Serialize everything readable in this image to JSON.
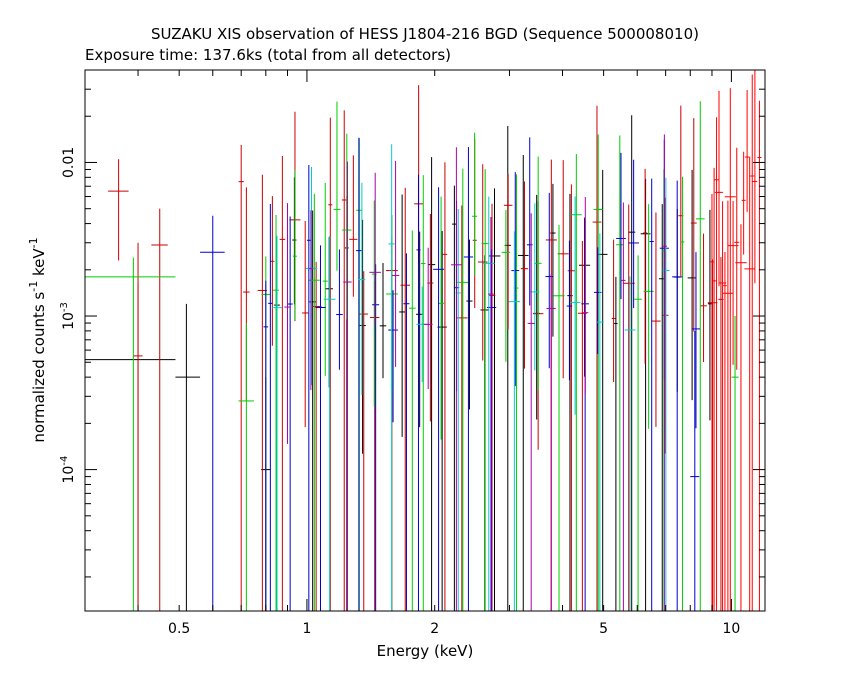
{
  "chart_data": {
    "type": "scatter",
    "title": "SUZAKU XIS observation of HESS J1804-216 BGD (Sequence 500008010)",
    "subtitle": "Exposure time: 137.6ks (total from all detectors)",
    "xlabel": "Energy (keV)",
    "ylabel_main": "normalized counts s",
    "ylabel_sup1": "-1",
    "ylabel_mid": " keV",
    "ylabel_sup2": "-1",
    "x_scale": "log",
    "y_scale": "log",
    "xlim": [
      0.3,
      12
    ],
    "ylim": [
      1.2e-05,
      0.04
    ],
    "x_ticks": [
      {
        "value": 0.5,
        "label": "0.5"
      },
      {
        "value": 1,
        "label": "1"
      },
      {
        "value": 2,
        "label": "2"
      },
      {
        "value": 5,
        "label": "5"
      },
      {
        "value": 10,
        "label": "10"
      }
    ],
    "y_ticks": [
      {
        "value": 0.01,
        "label": "0.01"
      },
      {
        "value": 0.001,
        "label": "10",
        "sup": "-3"
      },
      {
        "value": 0.0001,
        "label": "10",
        "sup": "-4"
      }
    ],
    "grid": false,
    "series": [
      {
        "color": "#000000",
        "points": [
          {
            "x": 0.4,
            "xlo": 0.3,
            "xhi": 0.49,
            "y": 0.00052,
            "ylo": 1.2e-05,
            "yhi": 0.0016
          },
          {
            "x": 0.52,
            "xlo": 0.49,
            "xhi": 0.56,
            "y": 0.0004,
            "ylo": 1.2e-05,
            "yhi": 0.0012
          },
          {
            "x": 0.8,
            "xlo": 0.78,
            "xhi": 0.82,
            "y": 0.0001,
            "ylo": 1.2e-05,
            "yhi": 0.0004
          }
        ],
        "dense_seed": 11,
        "dense_range": [
          0.85,
          9.0
        ],
        "dense_step": 0.035,
        "dense_level": [
          0.0008,
          0.004
        ]
      },
      {
        "color": "#cc0000",
        "points": [
          {
            "x": 0.36,
            "xlo": 0.34,
            "xhi": 0.38,
            "y": 0.0065,
            "ylo": 0.0023,
            "yhi": 0.0105
          },
          {
            "x": 0.4,
            "xlo": 0.39,
            "xhi": 0.41,
            "y": 0.00055,
            "ylo": 1.2e-05,
            "yhi": 0.003
          },
          {
            "x": 0.45,
            "xlo": 0.43,
            "xhi": 0.47,
            "y": 0.0029,
            "ylo": 1.2e-05,
            "yhi": 0.005
          },
          {
            "x": 0.7,
            "xlo": 0.69,
            "xhi": 0.71,
            "y": 0.0075,
            "ylo": 1.2e-05,
            "yhi": 0.013
          }
        ],
        "dense_seed": 23,
        "dense_range": [
          0.72,
          9.6
        ],
        "dense_step": 0.03,
        "dense_level": [
          0.0009,
          0.006
        ]
      },
      {
        "color": "#00cc00",
        "points": [
          {
            "x": 0.39,
            "xlo": 0.3,
            "xhi": 0.49,
            "y": 0.0018,
            "ylo": 1.2e-05,
            "yhi": 0.0024
          },
          {
            "x": 0.72,
            "xlo": 0.69,
            "xhi": 0.75,
            "y": 0.00028,
            "ylo": 1.2e-05,
            "yhi": 0.0009
          },
          {
            "x": 10.2,
            "xlo": 10.0,
            "xhi": 10.4,
            "y": 0.0004,
            "ylo": 1.2e-05,
            "yhi": 0.001
          }
        ],
        "dense_seed": 37,
        "dense_range": [
          0.8,
          9.2
        ],
        "dense_step": 0.038,
        "dense_level": [
          0.0009,
          0.005
        ]
      },
      {
        "color": "#0000cc",
        "points": [
          {
            "x": 0.6,
            "xlo": 0.56,
            "xhi": 0.64,
            "y": 0.0026,
            "ylo": 1.2e-05,
            "yhi": 0.0045
          },
          {
            "x": 0.8,
            "xlo": 0.79,
            "xhi": 0.81,
            "y": 0.00085,
            "ylo": 1.2e-05,
            "yhi": 0.0017
          },
          {
            "x": 8.2,
            "xlo": 8.0,
            "xhi": 8.4,
            "y": 9e-05,
            "ylo": 1.2e-05,
            "yhi": 0.0008
          }
        ],
        "dense_seed": 53,
        "dense_range": [
          0.82,
          8.8
        ],
        "dense_step": 0.04,
        "dense_level": [
          0.0008,
          0.004
        ]
      },
      {
        "color": "#00cccc",
        "points": [],
        "dense_seed": 71,
        "dense_range": [
          0.85,
          7.5
        ],
        "dense_step": 0.07,
        "dense_level": [
          0.0008,
          0.003
        ]
      },
      {
        "color": "#aa00aa",
        "points": [],
        "dense_seed": 89,
        "dense_range": [
          0.9,
          7.0
        ],
        "dense_step": 0.075,
        "dense_level": [
          0.0008,
          0.003
        ]
      },
      {
        "color": "#ff0000",
        "points": [],
        "dense_seed": 97,
        "dense_range": [
          9.0,
          11.9
        ],
        "dense_step": 0.008,
        "dense_level": [
          0.0012,
          0.012
        ]
      }
    ]
  }
}
